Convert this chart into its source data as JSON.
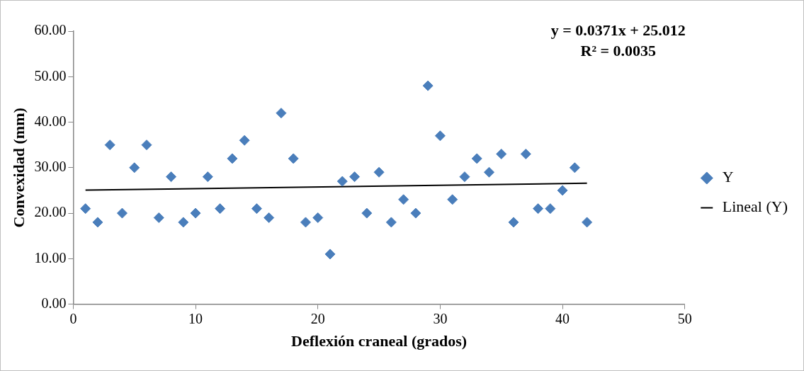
{
  "chart_data": {
    "type": "scatter",
    "xlabel": "Deflexión craneal (grados)",
    "ylabel": "Convexidad (mm)",
    "annotations": [
      "y = 0.0371x + 25.012",
      "R² = 0.0035"
    ],
    "xlim": [
      0,
      50
    ],
    "xticks": [
      0,
      10,
      20,
      30,
      40,
      50
    ],
    "ylim": [
      0,
      60
    ],
    "yticks": [
      {
        "value": 0,
        "label": "0.00"
      },
      {
        "value": 10,
        "label": "10.00"
      },
      {
        "value": 20,
        "label": "20.00"
      },
      {
        "value": 30,
        "label": "30.00"
      },
      {
        "value": 40,
        "label": "40.00"
      },
      {
        "value": 50,
        "label": "50.00"
      },
      {
        "value": 60,
        "label": "60.00"
      }
    ],
    "grid": false,
    "legend": "right",
    "marker": "diamond",
    "series": [
      {
        "name": "Y",
        "color": "#4a7ebb",
        "x": [
          1,
          2,
          3,
          4,
          5,
          6,
          7,
          8,
          9,
          10,
          11,
          12,
          13,
          14,
          15,
          16,
          17,
          18,
          19,
          20,
          21,
          22,
          23,
          24,
          25,
          26,
          27,
          28,
          29,
          30,
          31,
          32,
          33,
          34,
          35,
          36,
          37,
          38,
          39,
          40,
          41,
          42
        ],
        "values": [
          21,
          18,
          35,
          20,
          30,
          35,
          19,
          28,
          18,
          20,
          28,
          21,
          32,
          36,
          21,
          19,
          42,
          32,
          18,
          19,
          11,
          27,
          28,
          20,
          29,
          18,
          23,
          20,
          48,
          37,
          23,
          28,
          32,
          29,
          33,
          18,
          33,
          21,
          21,
          25,
          30,
          18
        ]
      },
      {
        "name": "Lineal (Y)",
        "type": "line",
        "color": "#000000",
        "line_style": "solid",
        "marker": "none",
        "x": [
          1,
          42
        ],
        "values": [
          25.05,
          26.57
        ]
      }
    ]
  }
}
